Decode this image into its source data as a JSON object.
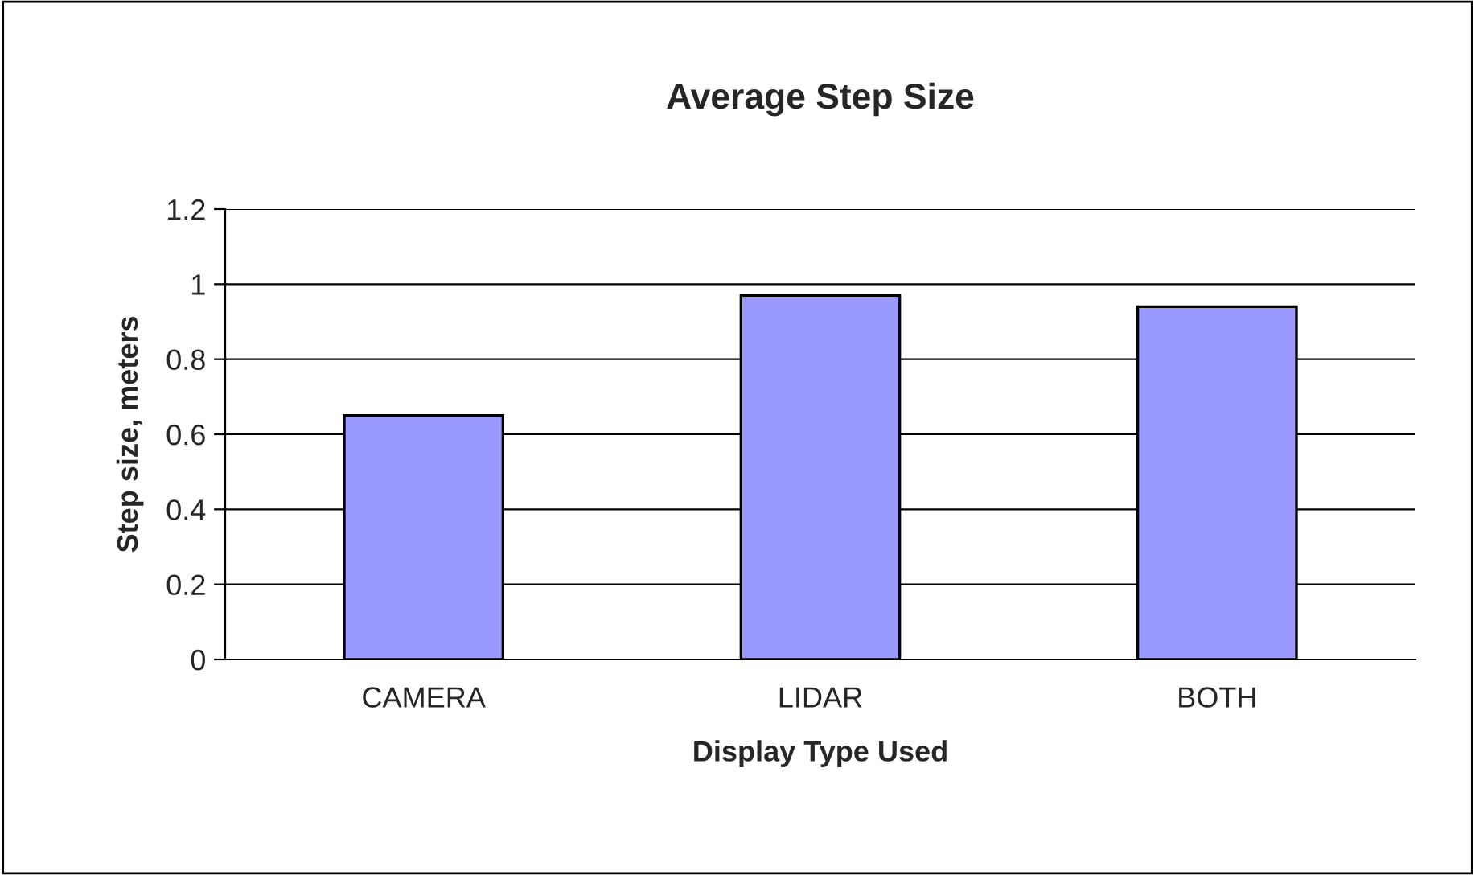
{
  "chart_data": {
    "type": "bar",
    "title": "Average Step Size",
    "xlabel": "Display Type Used",
    "ylabel": "Step size, meters",
    "categories": [
      "CAMERA",
      "LIDAR",
      "BOTH"
    ],
    "values": [
      0.65,
      0.97,
      0.94
    ],
    "color": "#9999ff",
    "ylim": [
      0,
      1.2
    ],
    "yticks": [
      0,
      {
        "value": 0.2,
        "label": "0.2"
      },
      {
        "value": 0.4,
        "label": "0.4"
      },
      {
        "value": 0.6,
        "label": "0.6"
      },
      {
        "value": 0.8,
        "label": "0.8"
      },
      1,
      {
        "value": 1.2,
        "label": "1.2"
      }
    ],
    "grid": "y",
    "legend": false
  }
}
